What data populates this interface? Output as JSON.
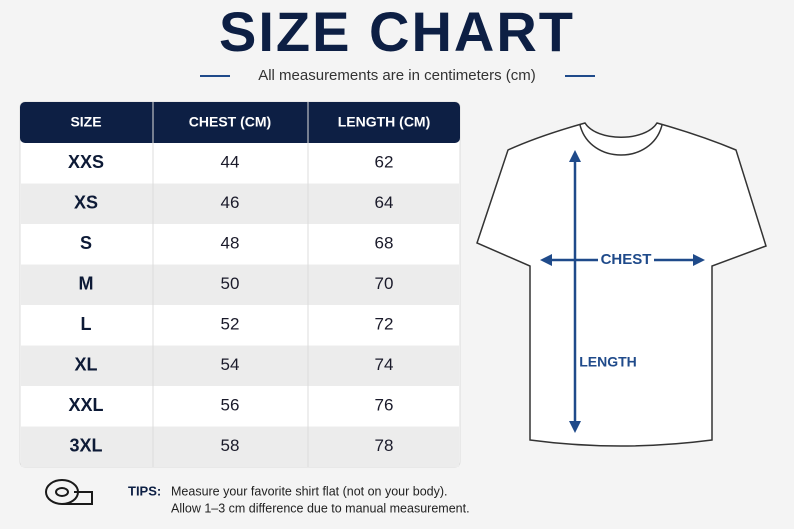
{
  "title": "SIZE CHART",
  "subtitle": "All measurements are in centimeters (cm)",
  "table": {
    "headers": [
      "SIZE",
      "CHEST (CM)",
      "LENGTH (CM)"
    ],
    "rows": [
      [
        "XXS",
        44,
        62
      ],
      [
        "XS",
        46,
        64
      ],
      [
        "S",
        48,
        68
      ],
      [
        "M",
        50,
        70
      ],
      [
        "L",
        52,
        72
      ],
      [
        "XL",
        54,
        74
      ],
      [
        "XXL",
        56,
        76
      ],
      [
        "3XL",
        58,
        78
      ]
    ]
  },
  "shirt": {
    "chest_label": "CHEST",
    "length_label": "LENGTH"
  },
  "tips": {
    "label": "TIPS:",
    "lines": [
      "Measure your favorite shirt flat (not on your body).",
      "Allow 1–3 cm difference due to manual measurement."
    ]
  }
}
